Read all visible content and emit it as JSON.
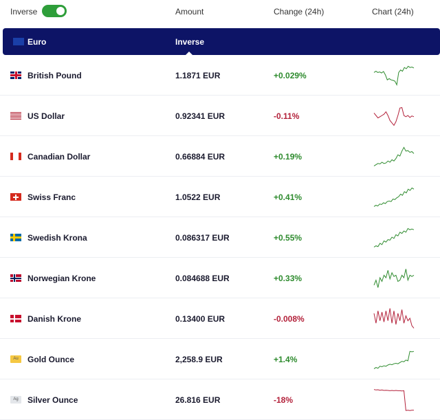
{
  "header": {
    "inverse_label": "Inverse",
    "inverse_on": true,
    "amount": "Amount",
    "change": "Change (24h)",
    "chart": "Chart (24h)"
  },
  "base": {
    "name": "Euro",
    "mode": "Inverse"
  },
  "colors": {
    "up": "#2e8b2e",
    "down": "#b3213a",
    "navy": "#0d1466"
  },
  "rows": [
    {
      "name": "British Pound",
      "flag": "gb",
      "amount": "1.1871 EUR",
      "change": "+0.029%",
      "dir": "pos",
      "spark": [
        6,
        6.5,
        6,
        6.2,
        5.8,
        6.4,
        5,
        3,
        3.5,
        3,
        2.8,
        2.5,
        1,
        6,
        7,
        6.5,
        8,
        7.5,
        8.5,
        8,
        8.2,
        7.8
      ]
    },
    {
      "name": "US Dollar",
      "flag": "us",
      "amount": "0.92341 EUR",
      "change": "-0.11%",
      "dir": "neg",
      "spark": [
        6,
        5,
        4,
        4.5,
        5,
        5.5,
        6.5,
        5,
        3,
        2,
        1,
        2.5,
        5,
        8,
        8.2,
        5,
        4.5,
        5,
        4.2,
        4.8,
        4.5
      ]
    },
    {
      "name": "Canadian Dollar",
      "flag": "ca",
      "amount": "0.66884 EUR",
      "change": "+0.19%",
      "dir": "pos",
      "spark": [
        1,
        1.5,
        2,
        1.8,
        2.5,
        2,
        2.2,
        3,
        2.5,
        3.5,
        3,
        4,
        5.5,
        5,
        7,
        8.5,
        7,
        7.2,
        6.5,
        6.8,
        6
      ]
    },
    {
      "name": "Swiss Franc",
      "flag": "ch",
      "amount": "1.0522 EUR",
      "change": "+0.41%",
      "dir": "pos",
      "spark": [
        1,
        1.5,
        1.2,
        2,
        1.8,
        2.5,
        2.2,
        3,
        3.2,
        3,
        4,
        3.8,
        4.5,
        5,
        6,
        5.5,
        7,
        6.5,
        8,
        7.5,
        8.5,
        8
      ]
    },
    {
      "name": "Swedish Krona",
      "flag": "se",
      "amount": "0.086317 EUR",
      "change": "+0.55%",
      "dir": "pos",
      "spark": [
        1,
        1.5,
        1.2,
        2.5,
        2,
        3.5,
        3,
        4,
        3.8,
        5,
        4.5,
        6,
        5.5,
        7,
        6.5,
        7.5,
        7,
        8.5,
        8,
        8.3,
        8
      ]
    },
    {
      "name": "Norwegian Krone",
      "flag": "no",
      "amount": "0.084688 EUR",
      "change": "+0.33%",
      "dir": "pos",
      "spark": [
        2,
        4,
        1,
        5,
        3.5,
        6,
        5,
        8,
        4.5,
        7,
        5.5,
        6,
        3.5,
        4,
        6,
        5,
        8.5,
        4,
        6,
        5.5,
        6
      ]
    },
    {
      "name": "Danish Krone",
      "flag": "dk",
      "amount": "0.13400 EUR",
      "change": "-0.008%",
      "dir": "neg",
      "spark": [
        7,
        3,
        8,
        4,
        7.5,
        3.5,
        8,
        4,
        9,
        3,
        8,
        2.5,
        7,
        4,
        8.5,
        3,
        6,
        4,
        5,
        2,
        1
      ]
    },
    {
      "name": "Gold Ounce",
      "flag": "au",
      "amount": "2,258.9 EUR",
      "change": "+1.4%",
      "dir": "pos",
      "spark": [
        1,
        1.5,
        1.2,
        2,
        1.8,
        2.2,
        2,
        2.5,
        2.8,
        2.6,
        3,
        3.2,
        3,
        3.5,
        4,
        3.8,
        4.5,
        4.2,
        8,
        7.8,
        8
      ]
    },
    {
      "name": "Silver Ounce",
      "flag": "ag",
      "amount": "26.816 EUR",
      "change": "-18%",
      "dir": "neg",
      "spark": [
        9,
        8.8,
        8.9,
        8.7,
        8.8,
        8.6,
        8.7,
        8.6,
        8.5,
        8.6,
        8.5,
        8.6,
        8.5,
        8.5,
        8.4,
        8.5,
        0.5,
        0.6,
        0.5,
        0.6,
        0.6
      ]
    }
  ],
  "metal_labels": {
    "au": "Au",
    "ag": "Ag"
  }
}
